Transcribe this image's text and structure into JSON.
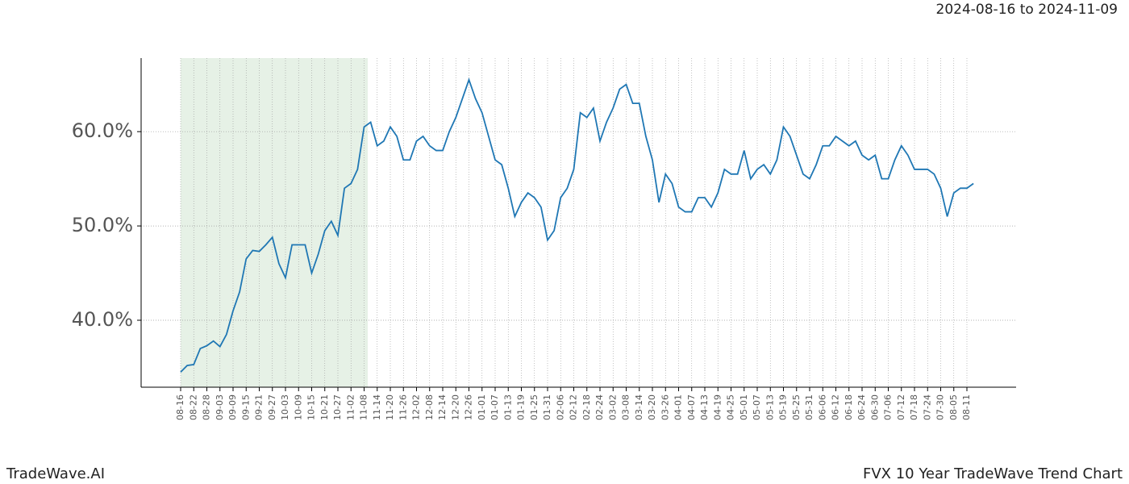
{
  "chart_data": {
    "type": "line",
    "title": "2024-08-16 to 2024-11-09",
    "footer_left": "TradeWave.AI",
    "footer_right": "FVX 10 Year TradeWave Trend Chart",
    "categories": [
      "08-16",
      null,
      "08-22",
      null,
      "08-28",
      null,
      "09-03",
      null,
      "09-09",
      null,
      "09-15",
      null,
      "09-21",
      null,
      "09-27",
      null,
      "10-03",
      null,
      "10-09",
      null,
      "10-15",
      null,
      "10-21",
      null,
      "10-27",
      null,
      "11-02",
      null,
      "11-08",
      null,
      "11-14",
      null,
      "11-20",
      null,
      "11-26",
      null,
      "12-02",
      null,
      "12-08",
      null,
      "12-14",
      null,
      "12-20",
      null,
      "12-26",
      null,
      "01-01",
      null,
      "01-07",
      null,
      "01-13",
      null,
      "01-19",
      null,
      "01-25",
      null,
      "01-31",
      null,
      "02-06",
      null,
      "02-12",
      null,
      "02-18",
      null,
      "02-24",
      null,
      "03-02",
      null,
      "03-08",
      null,
      "03-14",
      null,
      "03-20",
      null,
      "03-26",
      null,
      "04-01",
      null,
      "04-07",
      null,
      "04-13",
      null,
      "04-19",
      null,
      "04-25",
      null,
      "05-01",
      null,
      "05-07",
      null,
      "05-13",
      null,
      "05-19",
      null,
      "05-25",
      null,
      "05-31",
      null,
      "06-06",
      null,
      "06-12",
      null,
      "06-18",
      null,
      "06-24",
      null,
      "06-30",
      null,
      "07-06",
      null,
      "07-12",
      null,
      "07-18",
      null,
      "07-24",
      null,
      "07-30",
      null,
      "08-05",
      null,
      "08-11",
      null
    ],
    "values": [
      34.5,
      35.2,
      35.3,
      37,
      37.3,
      37.8,
      37.2,
      38.5,
      41,
      43,
      46.5,
      47.4,
      47.3,
      48,
      48.8,
      46,
      44.5,
      48,
      48,
      48,
      45,
      47,
      49.5,
      50.5,
      49,
      54,
      54.5,
      56,
      60.5,
      61,
      58.5,
      59,
      60.5,
      59.5,
      57,
      57,
      59,
      59.5,
      58.5,
      58,
      58,
      60,
      61.5,
      63.5,
      65.5,
      63.5,
      62,
      59.5,
      57,
      56.5,
      54,
      51,
      52.5,
      53.5,
      53,
      52,
      48.5,
      49.5,
      53,
      54,
      56,
      62,
      61.5,
      62.5,
      59,
      61,
      62.5,
      64.5,
      65,
      63,
      63,
      59.5,
      57,
      52.5,
      55.5,
      54.5,
      52,
      51.5,
      51.5,
      53,
      53,
      52,
      53.5,
      56,
      55.5,
      55.5,
      58,
      55,
      56,
      56.5,
      55.5,
      57,
      60.5,
      59.5,
      57.5,
      55.5,
      55,
      56.5,
      58.5,
      58.5,
      59.5,
      59,
      58.5,
      59,
      57.5,
      57,
      57.5,
      55,
      55,
      57,
      58.5,
      57.5,
      56,
      56,
      56,
      55.5,
      54,
      51,
      53.5,
      54,
      54,
      54.5
    ],
    "color": "#1f77b4",
    "ylim": [
      32.9,
      67.8
    ],
    "yticks": [
      {
        "value": 40,
        "label": "40.0%"
      },
      {
        "value": 50,
        "label": "50.0%"
      },
      {
        "value": 60,
        "label": "60.0%"
      }
    ],
    "grid": true
  }
}
